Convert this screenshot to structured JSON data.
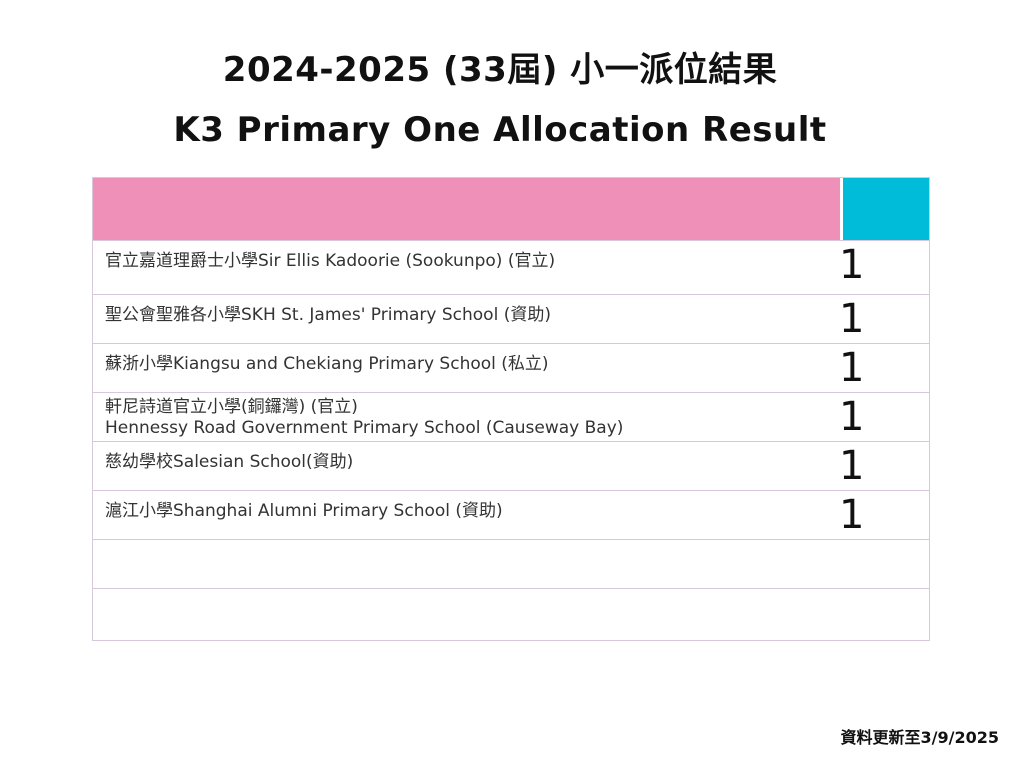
{
  "title": {
    "line1": "2024-2025 (33屆) 小一派位結果",
    "line2": "K3 Primary One Allocation Result"
  },
  "colors": {
    "header_pink": "#ef90b9",
    "header_cyan": "#00bcd8",
    "border": "#d8c8dd"
  },
  "rows": [
    {
      "name": "官立嘉道理爵士小學Sir Ellis Kadoorie (Sookunpo) (官立)",
      "count": "1"
    },
    {
      "name": "聖公會聖雅各小學SKH St. James' Primary School (資助)",
      "count": "1"
    },
    {
      "name": "蘇浙小學Kiangsu and Chekiang Primary School (私立)",
      "count": "1"
    },
    {
      "name": "軒尼詩道官立小學(銅鑼灣)  (官立)",
      "name2": "Hennessy Road Government Primary School (Causeway Bay)",
      "count": "1"
    },
    {
      "name": "慈幼學校Salesian School(資助)",
      "count": "1"
    },
    {
      "name": "滬江小學Shanghai Alumni Primary School (資助)",
      "count": "1"
    },
    {
      "name": "",
      "count": ""
    },
    {
      "name": "",
      "count": ""
    }
  ],
  "footer": "資料更新至3/9/2025"
}
